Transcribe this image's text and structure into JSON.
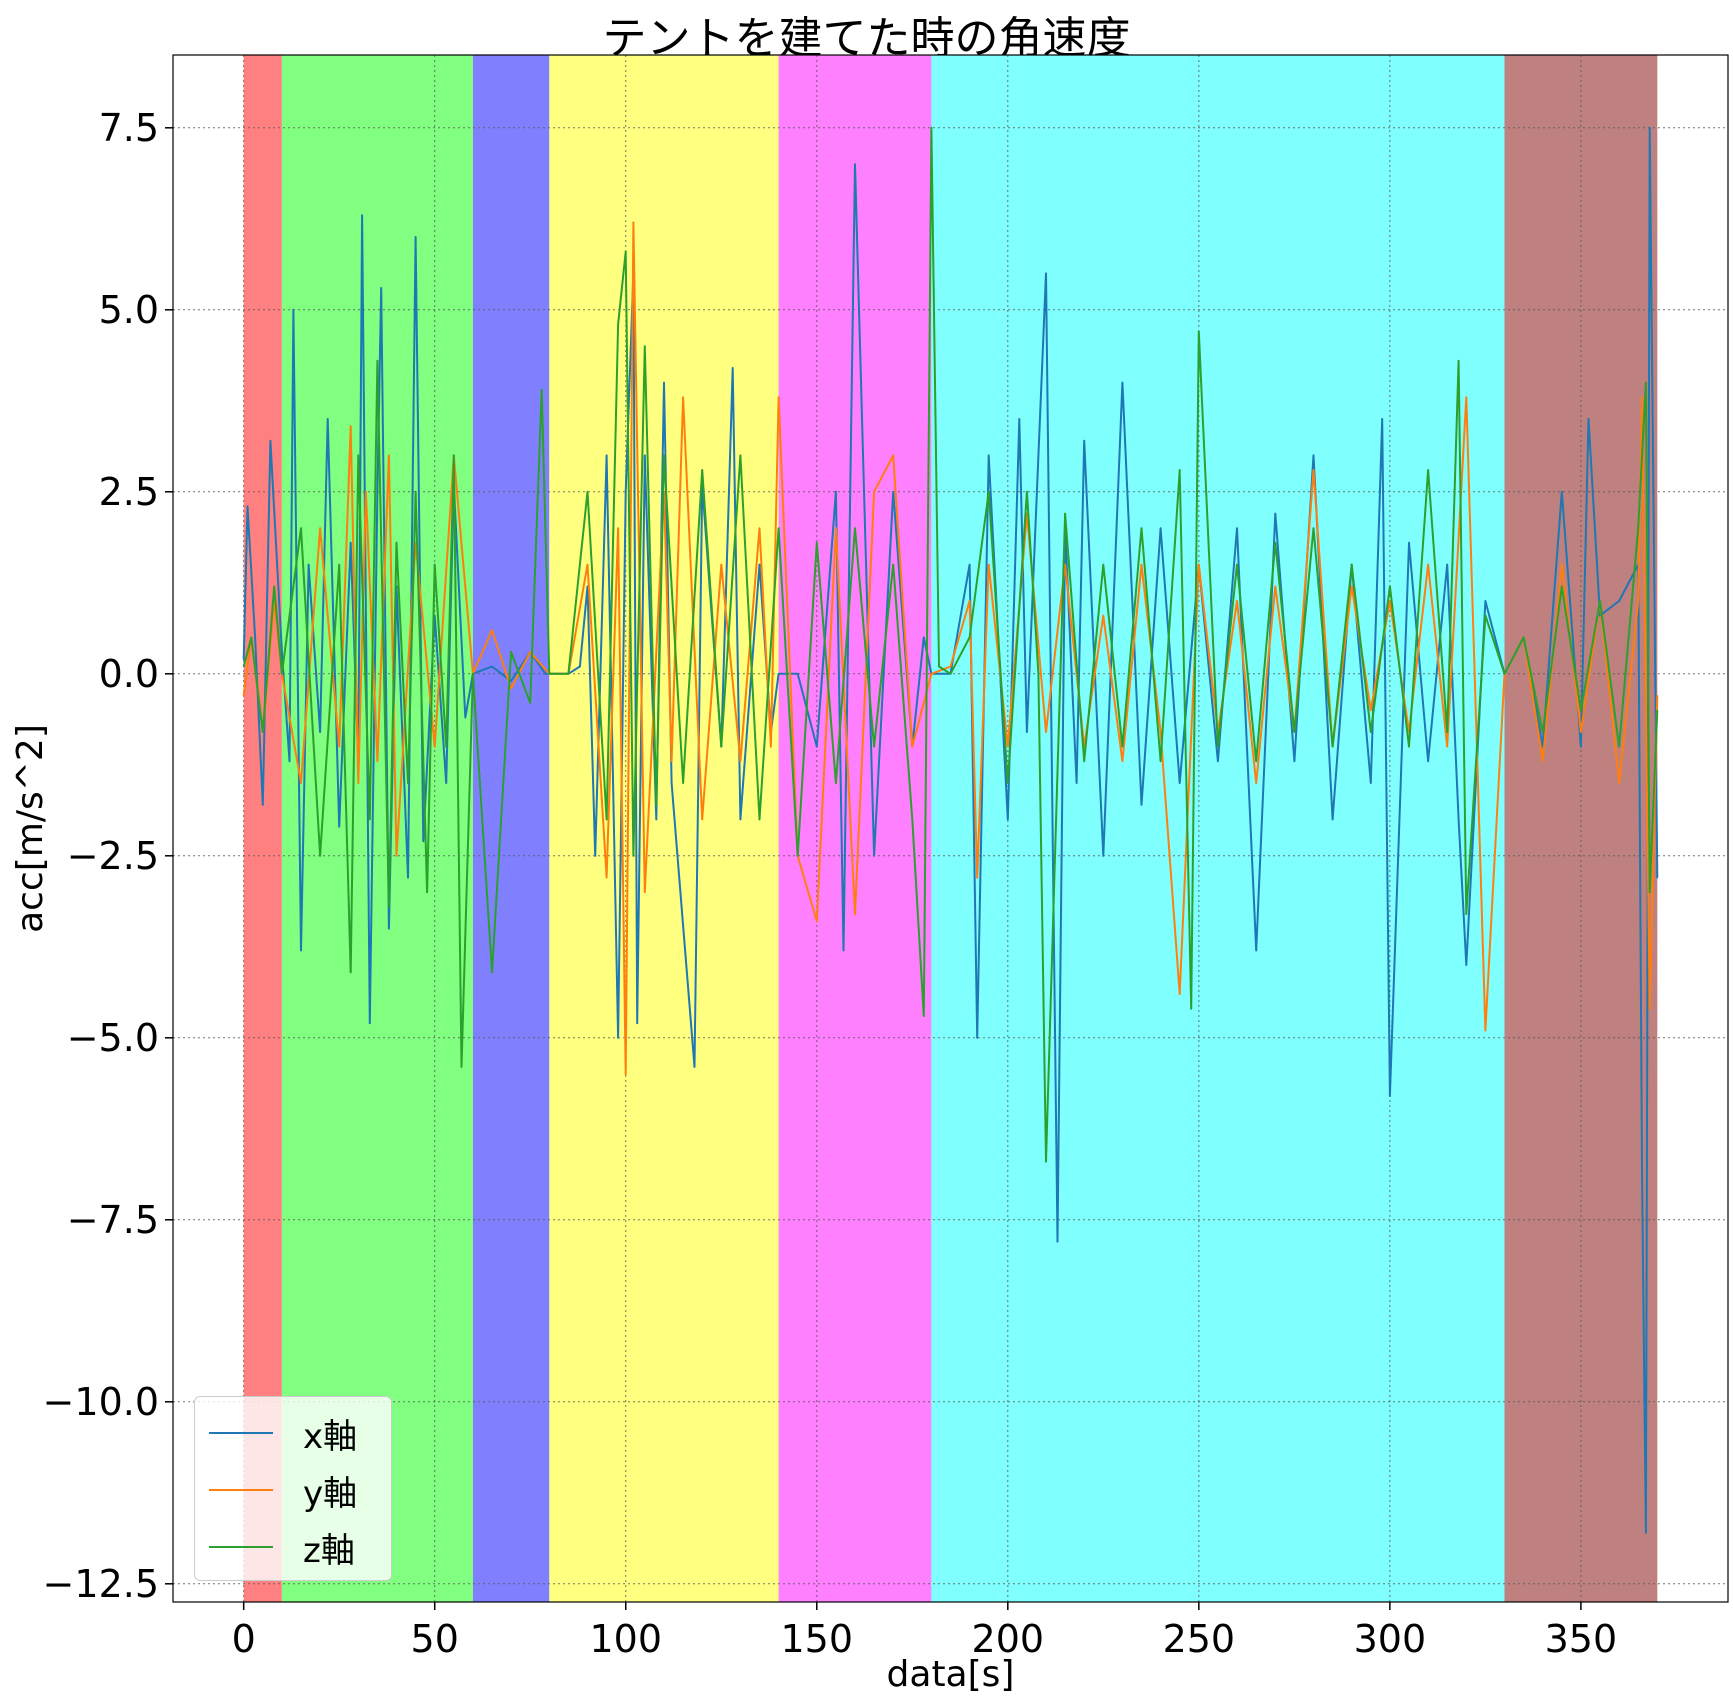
{
  "chart_data": {
    "type": "line",
    "title": "テントを建てた時の角速度",
    "xlabel": "data[s]",
    "ylabel": "acc[m/s^2]",
    "xlim": [
      -18.5,
      388.5
    ],
    "ylim": [
      -12.75,
      8.5
    ],
    "xticks": [
      0,
      50,
      100,
      150,
      200,
      250,
      300,
      350
    ],
    "xtick_labels": [
      "0",
      "50",
      "100",
      "150",
      "200",
      "250",
      "300",
      "350"
    ],
    "yticks": [
      7.5,
      5.0,
      2.5,
      0.0,
      -2.5,
      -5.0,
      -7.5,
      -10.0,
      -12.5
    ],
    "ytick_labels": [
      "7.5",
      "5.0",
      "2.5",
      "0.0",
      "−2.5",
      "−5.0",
      "−7.5",
      "−10.0",
      "−12.5"
    ],
    "grid": true,
    "legend_position": "lower-left",
    "spans": [
      {
        "x0": 0,
        "x1": 10,
        "color": "#ff8080"
      },
      {
        "x0": 10,
        "x1": 60,
        "color": "#80ff80"
      },
      {
        "x0": 60,
        "x1": 80,
        "color": "#8080ff"
      },
      {
        "x0": 80,
        "x1": 140,
        "color": "#ffff80"
      },
      {
        "x0": 140,
        "x1": 180,
        "color": "#ff80ff"
      },
      {
        "x0": 180,
        "x1": 330,
        "color": "#80ffff"
      },
      {
        "x0": 330,
        "x1": 370,
        "color": "#bf8080"
      }
    ],
    "series": [
      {
        "name": "x軸",
        "color": "#1f77b4",
        "x": [
          0,
          1,
          3,
          5,
          7,
          10,
          12,
          13,
          15,
          17,
          20,
          22,
          25,
          28,
          30,
          31,
          33,
          35,
          36,
          38,
          40,
          43,
          45,
          47,
          50,
          53,
          55,
          58,
          60,
          65,
          70,
          75,
          79,
          82,
          85,
          88,
          90,
          92,
          95,
          98,
          100,
          102,
          103,
          105,
          108,
          110,
          112,
          118,
          120,
          125,
          128,
          130,
          135,
          138,
          140,
          145,
          150,
          155,
          157,
          160,
          165,
          170,
          175,
          178,
          180,
          185,
          190,
          192,
          195,
          200,
          203,
          205,
          210,
          213,
          215,
          218,
          220,
          225,
          230,
          235,
          240,
          245,
          250,
          255,
          260,
          265,
          270,
          275,
          280,
          285,
          290,
          295,
          298,
          300,
          305,
          310,
          315,
          318,
          320,
          325,
          330,
          335,
          340,
          345,
          350,
          352,
          355,
          360,
          365,
          366,
          367,
          368,
          370
        ],
        "y": [
          0.2,
          2.3,
          0.5,
          -1.8,
          3.2,
          0.3,
          -1.2,
          5.0,
          -3.8,
          1.5,
          -0.8,
          3.5,
          -2.1,
          1.8,
          -1.2,
          6.3,
          -4.8,
          2.5,
          5.3,
          -3.5,
          1.2,
          -2.8,
          6.0,
          -2.3,
          0.8,
          -1.5,
          2.6,
          -0.6,
          0.0,
          0.1,
          -0.1,
          0.3,
          0.0,
          0.0,
          0.0,
          0.1,
          1.2,
          -2.5,
          3.0,
          -5.0,
          2.5,
          5.5,
          -4.8,
          3.0,
          -2.0,
          4.0,
          -1.5,
          -5.4,
          2.6,
          -1.0,
          4.2,
          -2.0,
          1.5,
          -0.8,
          0.0,
          0.0,
          -1.0,
          2.5,
          -3.8,
          7.0,
          -2.5,
          2.5,
          -1.0,
          0.5,
          0.0,
          0.0,
          1.5,
          -5.0,
          3.0,
          -2.0,
          3.5,
          -0.8,
          5.5,
          -7.8,
          2.0,
          -1.5,
          3.2,
          -2.5,
          4.0,
          -1.8,
          2.0,
          -1.5,
          1.5,
          -1.2,
          2.0,
          -3.8,
          2.2,
          -1.2,
          3.0,
          -2.0,
          1.5,
          -1.5,
          3.5,
          -5.8,
          1.8,
          -1.2,
          1.5,
          -2.0,
          -4.0,
          1.0,
          0.0,
          0.5,
          -1.0,
          2.5,
          -1.0,
          3.5,
          0.8,
          1.0,
          1.5,
          -6.8,
          -11.8,
          7.5,
          -2.8
        ]
      },
      {
        "name": "y軸",
        "color": "#ff7f0e",
        "x": [
          0,
          2,
          5,
          8,
          10,
          15,
          20,
          25,
          28,
          30,
          32,
          35,
          38,
          40,
          45,
          50,
          55,
          60,
          65,
          70,
          75,
          80,
          85,
          90,
          95,
          98,
          100,
          102,
          105,
          110,
          112,
          115,
          120,
          125,
          130,
          135,
          138,
          140,
          145,
          150,
          155,
          160,
          165,
          170,
          175,
          180,
          185,
          190,
          192,
          195,
          200,
          205,
          210,
          215,
          220,
          225,
          230,
          235,
          240,
          245,
          250,
          255,
          260,
          265,
          270,
          275,
          280,
          285,
          290,
          295,
          300,
          305,
          310,
          315,
          320,
          325,
          330,
          335,
          340,
          345,
          350,
          355,
          360,
          365,
          366,
          368,
          370
        ],
        "y": [
          -0.3,
          0.5,
          -0.8,
          1.0,
          0.0,
          -1.5,
          2.0,
          -1.0,
          3.4,
          -1.5,
          2.5,
          -1.2,
          3.0,
          -2.5,
          1.8,
          -1.0,
          3.0,
          0.0,
          0.6,
          -0.2,
          0.3,
          0.0,
          0.0,
          1.5,
          -2.8,
          2.0,
          -5.5,
          6.2,
          -3.0,
          2.5,
          -1.2,
          3.8,
          -2.0,
          1.5,
          -1.2,
          2.0,
          -1.0,
          3.8,
          -2.5,
          -3.4,
          2.0,
          -3.3,
          2.5,
          3.0,
          -1.0,
          0.0,
          0.1,
          1.0,
          -2.8,
          1.5,
          -1.0,
          2.2,
          -0.8,
          1.5,
          -1.0,
          0.8,
          -1.2,
          1.5,
          -0.8,
          -4.4,
          1.5,
          -0.8,
          1.0,
          -1.5,
          1.2,
          -0.8,
          2.8,
          -1.0,
          1.2,
          -0.5,
          1.0,
          -0.8,
          1.5,
          -1.0,
          3.8,
          -4.9,
          0.0,
          0.5,
          -1.2,
          1.5,
          -0.8,
          1.0,
          -1.5,
          1.0,
          3.8,
          -4.6,
          -0.3
        ]
      },
      {
        "name": "z軸",
        "color": "#2ca02c",
        "x": [
          0,
          2,
          5,
          8,
          10,
          15,
          20,
          25,
          28,
          30,
          33,
          35,
          38,
          40,
          43,
          45,
          48,
          50,
          53,
          55,
          57,
          60,
          65,
          70,
          75,
          78,
          80,
          85,
          90,
          95,
          98,
          100,
          102,
          105,
          108,
          110,
          115,
          120,
          125,
          130,
          135,
          140,
          145,
          150,
          155,
          160,
          165,
          170,
          175,
          178,
          180,
          182,
          185,
          190,
          195,
          200,
          205,
          208,
          210,
          215,
          220,
          225,
          230,
          235,
          240,
          245,
          248,
          250,
          255,
          260,
          265,
          270,
          275,
          280,
          285,
          290,
          295,
          300,
          305,
          310,
          315,
          318,
          320,
          325,
          330,
          335,
          340,
          345,
          350,
          355,
          360,
          365,
          367,
          368,
          370
        ],
        "y": [
          0.1,
          0.5,
          -0.8,
          1.2,
          0.0,
          2.0,
          -2.5,
          1.5,
          -4.1,
          3.0,
          -2.0,
          4.3,
          -3.2,
          1.8,
          -1.5,
          2.5,
          -3.0,
          1.5,
          -1.0,
          3.0,
          -5.4,
          0.0,
          -4.1,
          0.3,
          -0.4,
          3.9,
          0.0,
          0.0,
          2.5,
          -2.0,
          4.8,
          5.8,
          -2.5,
          4.5,
          -1.8,
          3.0,
          -1.5,
          2.8,
          -1.0,
          3.0,
          -2.0,
          2.0,
          -2.5,
          1.8,
          -1.5,
          2.0,
          -1.0,
          1.5,
          -2.0,
          -4.7,
          7.5,
          0.1,
          0.0,
          0.5,
          2.5,
          -1.5,
          2.5,
          0.0,
          -6.7,
          2.2,
          -1.2,
          1.5,
          -1.0,
          2.0,
          -1.2,
          2.8,
          -4.6,
          4.7,
          -1.0,
          1.5,
          -1.2,
          1.8,
          -0.8,
          2.0,
          -1.0,
          1.5,
          -0.8,
          1.2,
          -1.0,
          2.8,
          -0.8,
          4.3,
          -3.3,
          0.8,
          0.0,
          0.5,
          -0.8,
          1.2,
          -0.5,
          1.0,
          -1.0,
          2.0,
          4.0,
          -3.0,
          -0.5
        ]
      }
    ]
  }
}
